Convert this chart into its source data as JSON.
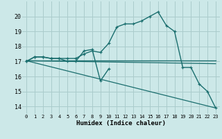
{
  "xlabel": "Humidex (Indice chaleur)",
  "xlim": [
    -0.5,
    23.5
  ],
  "ylim": [
    13.5,
    21.0
  ],
  "yticks": [
    14,
    15,
    16,
    17,
    18,
    19,
    20
  ],
  "xticks": [
    0,
    1,
    2,
    3,
    4,
    5,
    6,
    7,
    8,
    9,
    10,
    11,
    12,
    13,
    14,
    15,
    16,
    17,
    18,
    19,
    20,
    21,
    22,
    23
  ],
  "bg_color": "#cce8e8",
  "grid_color": "#aacccc",
  "line_color": "#1a6e6e",
  "series1_x": [
    0,
    1,
    2,
    3,
    4,
    5,
    6,
    7,
    8,
    9,
    10,
    11,
    12,
    13,
    14,
    15,
    16,
    17,
    18,
    19,
    20,
    21,
    22,
    23
  ],
  "series1_y": [
    17.0,
    17.3,
    17.3,
    17.2,
    17.2,
    17.2,
    17.2,
    17.5,
    17.7,
    17.6,
    18.2,
    19.3,
    19.5,
    19.5,
    19.7,
    20.0,
    20.3,
    19.4,
    19.0,
    16.6,
    16.6,
    15.5,
    15.0,
    13.9
  ],
  "series2_x": [
    0,
    1,
    2,
    3,
    4,
    5,
    6,
    7,
    8,
    9,
    10
  ],
  "series2_y": [
    17.0,
    17.3,
    17.3,
    17.2,
    17.2,
    17.0,
    17.0,
    17.7,
    17.8,
    15.7,
    16.5
  ],
  "trend1_x": [
    0,
    23
  ],
  "trend1_y": [
    17.05,
    17.05
  ],
  "trend2_x": [
    0,
    23
  ],
  "trend2_y": [
    17.05,
    16.85
  ],
  "trend3_x": [
    0,
    23
  ],
  "trend3_y": [
    17.05,
    13.9
  ]
}
